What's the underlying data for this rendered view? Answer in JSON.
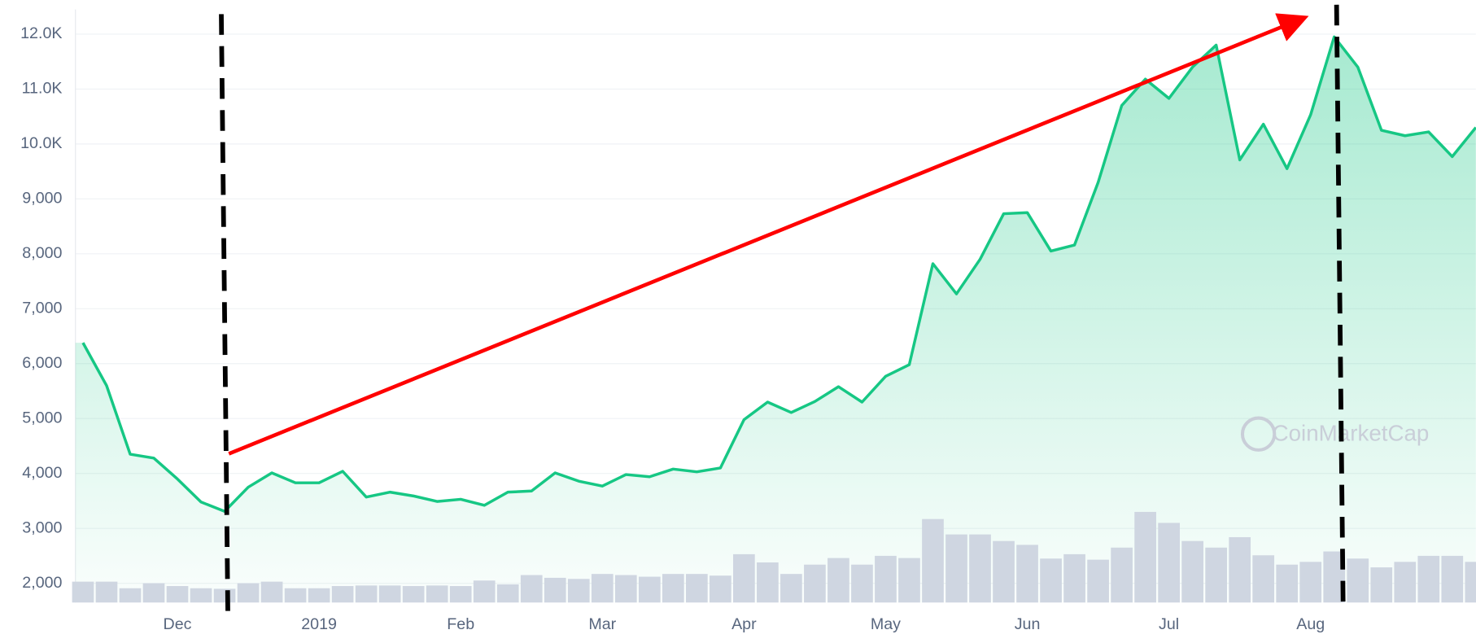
{
  "chart_data": {
    "type": "line",
    "categories": [
      null,
      null,
      null,
      null,
      "Dec",
      null,
      null,
      null,
      null,
      null,
      "2019",
      null,
      null,
      null,
      null,
      null,
      "Feb",
      null,
      null,
      null,
      null,
      null,
      "Mar",
      null,
      null,
      null,
      null,
      null,
      "Apr",
      null,
      null,
      null,
      null,
      null,
      "May",
      null,
      null,
      null,
      null,
      null,
      "Jun",
      null,
      null,
      null,
      null,
      null,
      "Jul",
      null,
      null,
      null,
      null,
      null,
      "Aug",
      null,
      null,
      null,
      null,
      null,
      null,
      null
    ],
    "series": [
      {
        "type": "line",
        "color": "#16c784",
        "values": [
          6380,
          5600,
          4350,
          4280,
          3900,
          3480,
          3310,
          3750,
          4010,
          3830,
          3830,
          4040,
          3570,
          3660,
          3590,
          3490,
          3530,
          3420,
          3660,
          3680,
          4010,
          3860,
          3770,
          3980,
          3940,
          4080,
          4030,
          4100,
          4980,
          5300,
          5110,
          5310,
          5580,
          5300,
          5770,
          5980,
          7820,
          7270,
          7900,
          8730,
          8750,
          8050,
          8160,
          9300,
          10700,
          11180,
          10830,
          11400,
          11800,
          9710,
          10360,
          9550,
          10530,
          11950,
          11400,
          10250,
          10150,
          10220,
          9770,
          10300
        ]
      },
      {
        "type": "bar",
        "color": "#cfd6e1",
        "values": [
          2030,
          2030,
          1910,
          2000,
          1950,
          1910,
          1900,
          2000,
          2030,
          1910,
          1910,
          1950,
          1960,
          1960,
          1950,
          1960,
          1950,
          2050,
          1980,
          2150,
          2100,
          2080,
          2170,
          2150,
          2120,
          2170,
          2170,
          2140,
          2530,
          2380,
          2170,
          2340,
          2460,
          2340,
          2500,
          2460,
          3170,
          2890,
          2890,
          2770,
          2700,
          2450,
          2530,
          2430,
          2650,
          3300,
          3100,
          2770,
          2650,
          2840,
          2510,
          2340,
          2390,
          2580,
          2450,
          2290,
          2390,
          2500,
          2500,
          2390
        ]
      }
    ],
    "ylim": [
      1650,
      12450
    ],
    "yticks": [
      {
        "value": 2000,
        "label": "2,000"
      },
      {
        "value": 3000,
        "label": "3,000"
      },
      {
        "value": 4000,
        "label": "4,000"
      },
      {
        "value": 5000,
        "label": "5,000"
      },
      {
        "value": 6000,
        "label": "6,000"
      },
      {
        "value": 7000,
        "label": "7,000"
      },
      {
        "value": 8000,
        "label": "8,000"
      },
      {
        "value": 9000,
        "label": "9,000"
      },
      {
        "value": 10000,
        "label": "10.0K"
      },
      {
        "value": 11000,
        "label": "11.0K"
      },
      {
        "value": 12000,
        "label": "12.0K"
      }
    ],
    "grid": true,
    "watermark": "CoinMarketCap"
  }
}
